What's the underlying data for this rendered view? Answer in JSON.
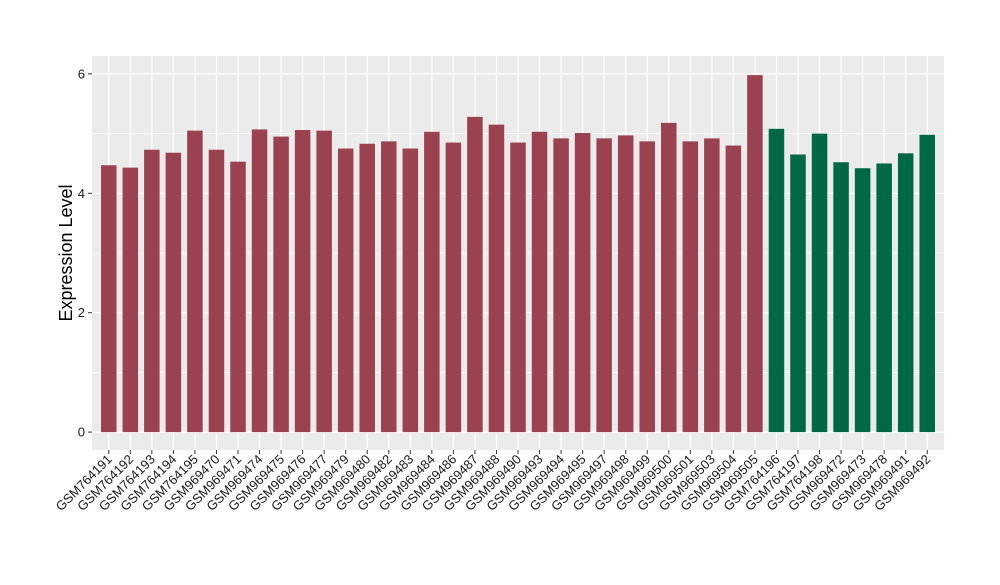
{
  "chart_data": {
    "type": "bar",
    "title": "",
    "xlabel": "",
    "ylabel": "Expression Level",
    "ylim": [
      -0.3,
      6.3
    ],
    "yticks": [
      0,
      2,
      4,
      6
    ],
    "ytick_labels": [
      "0",
      "2",
      "4",
      "6"
    ],
    "grid": true,
    "legend": "none",
    "colors": {
      "group_1": "#9B4250",
      "group_2": "#006845",
      "panel_bg": "#EBEBEB",
      "grid": "#FFFFFF"
    },
    "categories": [
      "GSM764191",
      "GSM764192",
      "GSM764193",
      "GSM764194",
      "GSM764195",
      "GSM969470",
      "GSM969471",
      "GSM969474",
      "GSM969475",
      "GSM969476",
      "GSM969477",
      "GSM969479",
      "GSM969480",
      "GSM969482",
      "GSM969483",
      "GSM969484",
      "GSM969486",
      "GSM969487",
      "GSM969488",
      "GSM969490",
      "GSM969493",
      "GSM969494",
      "GSM969495",
      "GSM969497",
      "GSM969498",
      "GSM969499",
      "GSM969500",
      "GSM969501",
      "GSM969503",
      "GSM969504",
      "GSM969505",
      "GSM764196",
      "GSM764197",
      "GSM764198",
      "GSM969472",
      "GSM969473",
      "GSM969478",
      "GSM969491",
      "GSM969492"
    ],
    "values": [
      4.47,
      4.43,
      4.73,
      4.68,
      5.05,
      4.73,
      4.53,
      5.07,
      4.95,
      5.06,
      5.05,
      4.75,
      4.83,
      4.87,
      4.75,
      5.03,
      4.85,
      5.28,
      5.15,
      4.85,
      5.03,
      4.92,
      5.01,
      4.92,
      4.97,
      4.87,
      5.18,
      4.87,
      4.92,
      4.8,
      5.98,
      5.08,
      4.65,
      5.0,
      4.52,
      4.42,
      4.5,
      4.67,
      4.98
    ],
    "bar_groups": [
      "group_1",
      "group_1",
      "group_1",
      "group_1",
      "group_1",
      "group_1",
      "group_1",
      "group_1",
      "group_1",
      "group_1",
      "group_1",
      "group_1",
      "group_1",
      "group_1",
      "group_1",
      "group_1",
      "group_1",
      "group_1",
      "group_1",
      "group_1",
      "group_1",
      "group_1",
      "group_1",
      "group_1",
      "group_1",
      "group_1",
      "group_1",
      "group_1",
      "group_1",
      "group_1",
      "group_1",
      "group_2",
      "group_2",
      "group_2",
      "group_2",
      "group_2",
      "group_2",
      "group_2",
      "group_2"
    ]
  }
}
